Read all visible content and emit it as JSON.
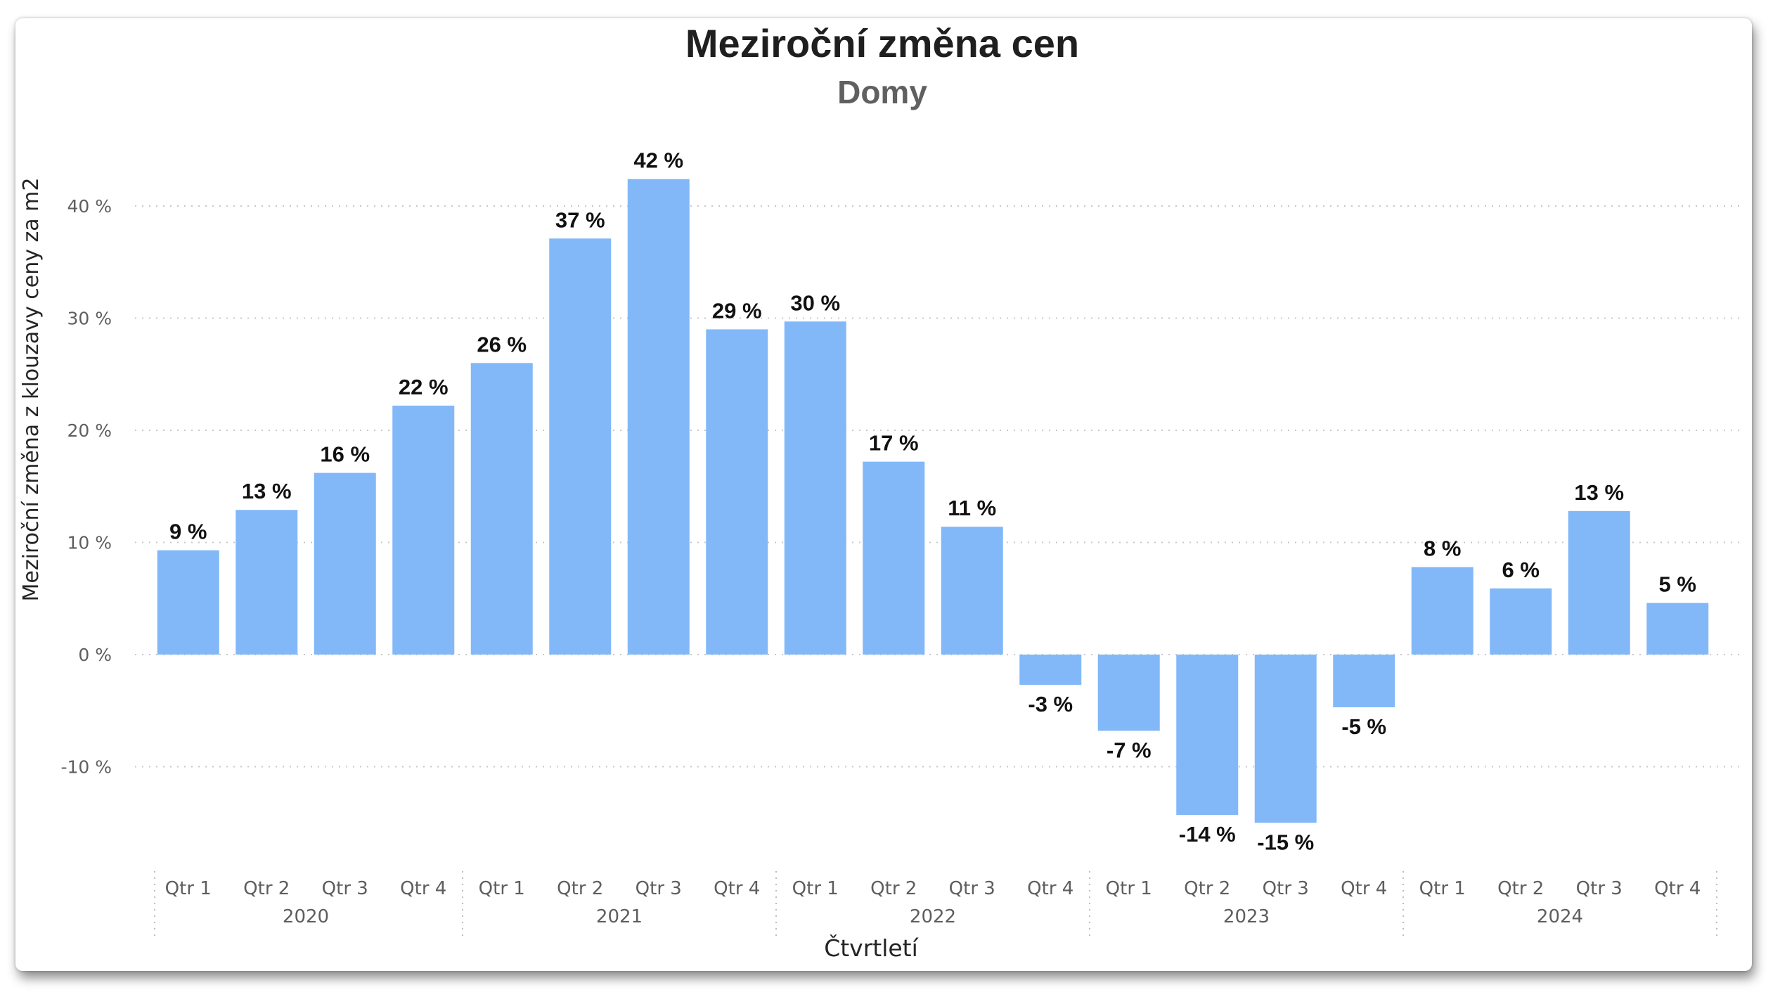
{
  "chart_data": {
    "type": "bar",
    "title": "Meziroční změna cen",
    "subtitle": "Domy",
    "xlabel": "Čtvrtletí",
    "ylabel": "Meziroční změna z klouzavy ceny za m2",
    "ylim": [
      -18,
      46
    ],
    "yticks": [
      -10,
      0,
      10,
      20,
      30,
      40
    ],
    "ytick_labels": [
      "-10 %",
      "0 %",
      "10 %",
      "20 %",
      "30 %",
      "40 %"
    ],
    "grid": true,
    "bar_color": "#82b8f8",
    "years": [
      "2020",
      "2021",
      "2022",
      "2023",
      "2024"
    ],
    "categories": [
      "Qtr 1",
      "Qtr 2",
      "Qtr 3",
      "Qtr 4",
      "Qtr 1",
      "Qtr 2",
      "Qtr 3",
      "Qtr 4",
      "Qtr 1",
      "Qtr 2",
      "Qtr 3",
      "Qtr 4",
      "Qtr 1",
      "Qtr 2",
      "Qtr 3",
      "Qtr 4",
      "Qtr 1",
      "Qtr 2",
      "Qtr 3",
      "Qtr 4"
    ],
    "values": [
      9.3,
      12.9,
      16.2,
      22.2,
      26.0,
      37.1,
      42.4,
      29.0,
      29.7,
      17.2,
      11.4,
      -2.7,
      -6.8,
      -14.3,
      -15.0,
      -4.7,
      7.8,
      5.9,
      12.8,
      4.6
    ],
    "data_labels": [
      "9 %",
      "13 %",
      "16 %",
      "22 %",
      "26 %",
      "37 %",
      "42 %",
      "29 %",
      "30 %",
      "17 %",
      "11 %",
      "-3 %",
      "-7 %",
      "-14 %",
      "-15 %",
      "-5 %",
      "8 %",
      "6 %",
      "13 %",
      "5 %"
    ]
  }
}
